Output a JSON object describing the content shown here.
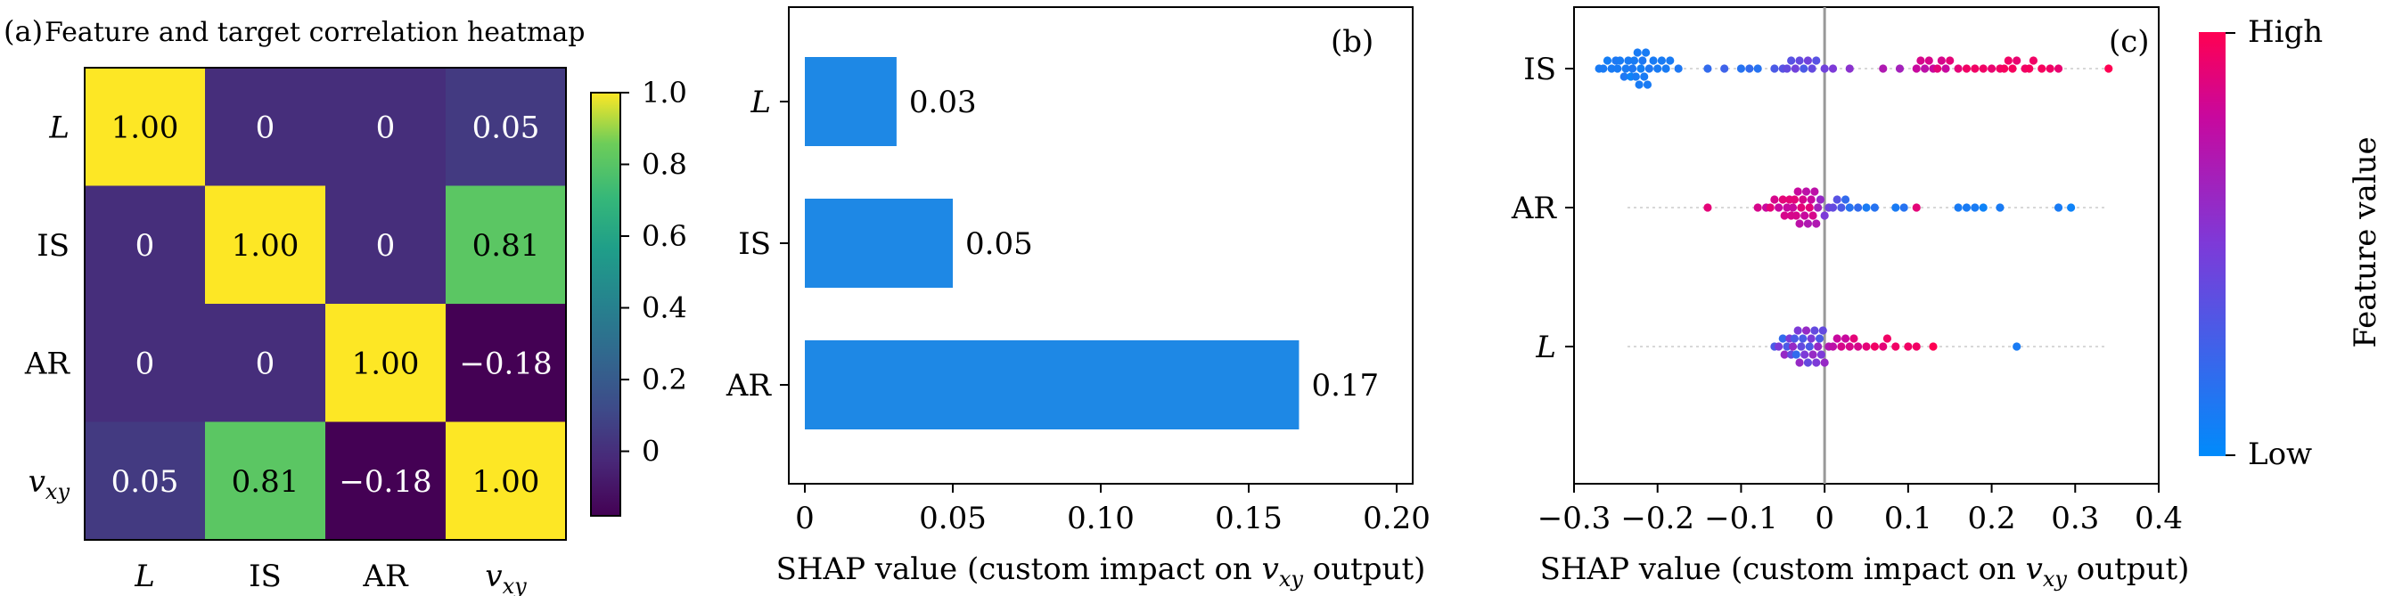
{
  "chart_data": [
    {
      "type": "heatmap",
      "panel_label": "(a)",
      "title": "Feature and target correlation heatmap",
      "rows": [
        "L",
        "IS",
        "AR",
        "v_xy"
      ],
      "cols": [
        "L",
        "IS",
        "AR",
        "v_xy"
      ],
      "values": [
        [
          1.0,
          0.0,
          0.0,
          0.05
        ],
        [
          0.0,
          1.0,
          0.0,
          0.81
        ],
        [
          0.0,
          0.0,
          1.0,
          -0.18
        ],
        [
          0.05,
          0.81,
          -0.18,
          1.0
        ]
      ],
      "cell_labels": [
        [
          "1.00",
          "0",
          "0",
          "0.05"
        ],
        [
          "0",
          "1.00",
          "0",
          "0.81"
        ],
        [
          "0",
          "0",
          "1.00",
          "−0.18"
        ],
        [
          "0.05",
          "0.81",
          "−0.18",
          "1.00"
        ]
      ],
      "row_labels": [
        "L",
        "IS",
        "AR",
        "v"
      ],
      "row_label_subs": [
        "",
        "",
        "",
        "xy"
      ],
      "col_labels": [
        "L",
        "IS",
        "AR",
        "v"
      ],
      "col_label_subs": [
        "",
        "",
        "",
        "xy"
      ],
      "colorbar": {
        "vmin": -0.18,
        "vmax": 1.0,
        "ticks": [
          0,
          0.2,
          0.4,
          0.6,
          0.8,
          1.0
        ],
        "tick_labels": [
          "0",
          "0.2",
          "0.4",
          "0.6",
          "0.8",
          "1.0"
        ]
      }
    },
    {
      "type": "bar",
      "orientation": "horizontal",
      "panel_label": "(b)",
      "categories": [
        "L",
        "IS",
        "AR"
      ],
      "values": [
        0.031,
        0.05,
        0.167
      ],
      "value_labels": [
        "0.03",
        "0.05",
        "0.17"
      ],
      "xlim": [
        0,
        0.2
      ],
      "x_ticks": [
        0,
        0.05,
        0.1,
        0.15,
        0.2
      ],
      "x_tick_labels": [
        "0",
        "0.05",
        "0.10",
        "0.15",
        "0.20"
      ],
      "xlabel_pre": "SHAP value (custom impact on ",
      "xlabel_var": "v",
      "xlabel_sub": "xy",
      "xlabel_post": " output)",
      "color": "#1E88E5"
    },
    {
      "type": "scatter",
      "subtype": "shap-beeswarm",
      "panel_label": "(c)",
      "features": [
        "IS",
        "AR",
        "L"
      ],
      "xlim": [
        -0.3,
        0.4
      ],
      "x_ticks": [
        -0.3,
        -0.2,
        -0.1,
        0,
        0.1,
        0.2,
        0.3,
        0.4
      ],
      "x_tick_labels": [
        "−0.3",
        "−0.2",
        "−0.1",
        "0",
        "0.1",
        "0.2",
        "0.3",
        "0.4"
      ],
      "xlabel_pre": "SHAP value (custom impact on ",
      "xlabel_var": "v",
      "xlabel_sub": "xy",
      "xlabel_post": " output)",
      "colorbar_label": "Feature value",
      "colorbar_high": "High",
      "colorbar_low": "Low",
      "points": {
        "IS": [
          [
            -0.27,
            0.1
          ],
          [
            -0.265,
            0.1
          ],
          [
            -0.26,
            0.08
          ],
          [
            -0.255,
            0.1
          ],
          [
            -0.25,
            0.12
          ],
          [
            -0.248,
            0.1
          ],
          [
            -0.245,
            0.1
          ],
          [
            -0.24,
            0.12
          ],
          [
            -0.238,
            0.1
          ],
          [
            -0.235,
            0.1
          ],
          [
            -0.232,
            0.05
          ],
          [
            -0.23,
            0.12
          ],
          [
            -0.228,
            0.1
          ],
          [
            -0.226,
            0.1
          ],
          [
            -0.224,
            0.1
          ],
          [
            -0.222,
            0.1
          ],
          [
            -0.22,
            0.08
          ],
          [
            -0.218,
            0.12
          ],
          [
            -0.216,
            0.1
          ],
          [
            -0.214,
            0.1
          ],
          [
            -0.212,
            0.1
          ],
          [
            -0.21,
            0.12
          ],
          [
            -0.205,
            0.1
          ],
          [
            -0.2,
            0.1
          ],
          [
            -0.195,
            0.1
          ],
          [
            -0.19,
            0.1
          ],
          [
            -0.185,
            0.1
          ],
          [
            -0.175,
            0.12
          ],
          [
            -0.14,
            0.2
          ],
          [
            -0.12,
            0.25
          ],
          [
            -0.1,
            0.15
          ],
          [
            -0.09,
            0.2
          ],
          [
            -0.08,
            0.15
          ],
          [
            -0.06,
            0.3
          ],
          [
            -0.05,
            0.35
          ],
          [
            -0.045,
            0.4
          ],
          [
            -0.04,
            0.35
          ],
          [
            -0.035,
            0.45
          ],
          [
            -0.03,
            0.4
          ],
          [
            -0.025,
            0.3
          ],
          [
            -0.02,
            0.45
          ],
          [
            -0.015,
            0.4
          ],
          [
            -0.01,
            0.35
          ],
          [
            0.0,
            0.45
          ],
          [
            0.01,
            0.5
          ],
          [
            0.03,
            0.55
          ],
          [
            0.07,
            0.7
          ],
          [
            0.09,
            0.65
          ],
          [
            0.11,
            0.8
          ],
          [
            0.115,
            0.85
          ],
          [
            0.12,
            0.75
          ],
          [
            0.125,
            0.85
          ],
          [
            0.13,
            0.8
          ],
          [
            0.135,
            0.9
          ],
          [
            0.14,
            0.85
          ],
          [
            0.145,
            0.8
          ],
          [
            0.15,
            0.9
          ],
          [
            0.16,
            0.9
          ],
          [
            0.17,
            0.95
          ],
          [
            0.18,
            0.95
          ],
          [
            0.19,
            0.95
          ],
          [
            0.2,
            0.92
          ],
          [
            0.21,
            0.95
          ],
          [
            0.215,
            0.97
          ],
          [
            0.22,
            0.95
          ],
          [
            0.225,
            0.97
          ],
          [
            0.23,
            0.92
          ],
          [
            0.24,
            0.95
          ],
          [
            0.245,
            0.97
          ],
          [
            0.25,
            0.95
          ],
          [
            0.26,
            0.97
          ],
          [
            0.27,
            0.95
          ],
          [
            0.28,
            0.92
          ],
          [
            0.34,
            1.0
          ]
        ],
        "AR": [
          [
            -0.14,
            0.9
          ],
          [
            -0.08,
            0.85
          ],
          [
            -0.07,
            0.8
          ],
          [
            -0.065,
            0.9
          ],
          [
            -0.06,
            0.85
          ],
          [
            -0.055,
            0.8
          ],
          [
            -0.05,
            0.9
          ],
          [
            -0.048,
            0.85
          ],
          [
            -0.045,
            0.8
          ],
          [
            -0.042,
            0.9
          ],
          [
            -0.04,
            0.85
          ],
          [
            -0.038,
            0.8
          ],
          [
            -0.036,
            0.9
          ],
          [
            -0.034,
            0.85
          ],
          [
            -0.032,
            0.8
          ],
          [
            -0.03,
            0.75
          ],
          [
            -0.028,
            0.9
          ],
          [
            -0.026,
            0.85
          ],
          [
            -0.024,
            0.8
          ],
          [
            -0.022,
            0.75
          ],
          [
            -0.02,
            0.7
          ],
          [
            -0.018,
            0.9
          ],
          [
            -0.016,
            0.8
          ],
          [
            -0.014,
            0.85
          ],
          [
            -0.012,
            0.75
          ],
          [
            -0.01,
            0.7
          ],
          [
            -0.008,
            0.65
          ],
          [
            -0.005,
            0.6
          ],
          [
            0.0,
            0.5
          ],
          [
            0.005,
            0.45
          ],
          [
            0.01,
            0.4
          ],
          [
            0.015,
            0.35
          ],
          [
            0.02,
            0.3
          ],
          [
            0.025,
            0.2
          ],
          [
            0.03,
            0.15
          ],
          [
            0.04,
            0.2
          ],
          [
            0.05,
            0.1
          ],
          [
            0.06,
            0.15
          ],
          [
            0.085,
            0.1
          ],
          [
            0.095,
            0.15
          ],
          [
            0.11,
            0.9
          ],
          [
            0.16,
            0.1
          ],
          [
            0.17,
            0.1
          ],
          [
            0.18,
            0.1
          ],
          [
            0.19,
            0.05
          ],
          [
            0.21,
            0.1
          ],
          [
            0.28,
            0.1
          ],
          [
            0.295,
            0.05
          ]
        ],
        "L": [
          [
            -0.06,
            0.3
          ],
          [
            -0.055,
            0.5
          ],
          [
            -0.05,
            0.2
          ],
          [
            -0.048,
            0.6
          ],
          [
            -0.045,
            0.3
          ],
          [
            -0.042,
            0.5
          ],
          [
            -0.04,
            0.4
          ],
          [
            -0.038,
            0.6
          ],
          [
            -0.036,
            0.3
          ],
          [
            -0.034,
            0.2
          ],
          [
            -0.032,
            0.5
          ],
          [
            -0.03,
            0.6
          ],
          [
            -0.028,
            0.4
          ],
          [
            -0.026,
            0.3
          ],
          [
            -0.024,
            0.5
          ],
          [
            -0.022,
            0.6
          ],
          [
            -0.02,
            0.4
          ],
          [
            -0.018,
            0.3
          ],
          [
            -0.016,
            0.5
          ],
          [
            -0.014,
            0.6
          ],
          [
            -0.012,
            0.4
          ],
          [
            -0.01,
            0.5
          ],
          [
            -0.008,
            0.6
          ],
          [
            -0.006,
            0.3
          ],
          [
            -0.004,
            0.5
          ],
          [
            -0.002,
            0.4
          ],
          [
            0.0,
            0.6
          ],
          [
            0.005,
            0.7
          ],
          [
            0.01,
            0.75
          ],
          [
            0.015,
            0.8
          ],
          [
            0.02,
            0.85
          ],
          [
            0.025,
            0.8
          ],
          [
            0.03,
            0.85
          ],
          [
            0.035,
            0.9
          ],
          [
            0.04,
            0.85
          ],
          [
            0.05,
            0.9
          ],
          [
            0.06,
            0.95
          ],
          [
            0.07,
            0.9
          ],
          [
            0.075,
            0.95
          ],
          [
            0.085,
            0.95
          ],
          [
            0.1,
            0.95
          ],
          [
            0.11,
            0.95
          ],
          [
            0.13,
            1.0
          ],
          [
            0.23,
            0.1
          ]
        ]
      }
    }
  ]
}
